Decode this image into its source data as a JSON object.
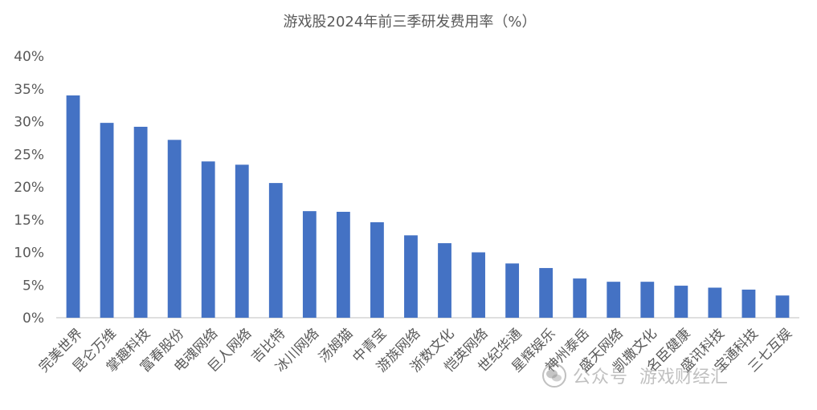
{
  "chart_data": {
    "type": "bar",
    "title": "游戏股2024年前三季研发费用率（%）",
    "xlabel": "",
    "ylabel": "",
    "categories": [
      "完美世界",
      "昆仑万维",
      "掌趣科技",
      "富春股份",
      "电魂网络",
      "巨人网络",
      "吉比特",
      "冰川网络",
      "汤姆猫",
      "中青宝",
      "游族网络",
      "浙数文化",
      "恺英网络",
      "世纪华通",
      "星辉娱乐",
      "神州泰岳",
      "盛天网络",
      "凯撒文化",
      "名臣健康",
      "盛讯科技",
      "宝通科技",
      "三七互娱"
    ],
    "values": [
      34.0,
      29.8,
      29.2,
      27.2,
      23.9,
      23.4,
      20.6,
      16.3,
      16.2,
      14.6,
      12.6,
      11.4,
      10.0,
      8.3,
      7.6,
      6.0,
      5.5,
      5.5,
      4.9,
      4.6,
      4.3,
      3.4
    ],
    "ylim": [
      0,
      40
    ],
    "yticks": [
      "0%",
      "5%",
      "10%",
      "15%",
      "20%",
      "25%",
      "30%",
      "35%",
      "40%"
    ],
    "bar_color": "#4472C4",
    "grid": false,
    "legend": "none"
  },
  "watermark": {
    "platform": "公众号",
    "account": "游戏财经汇"
  }
}
